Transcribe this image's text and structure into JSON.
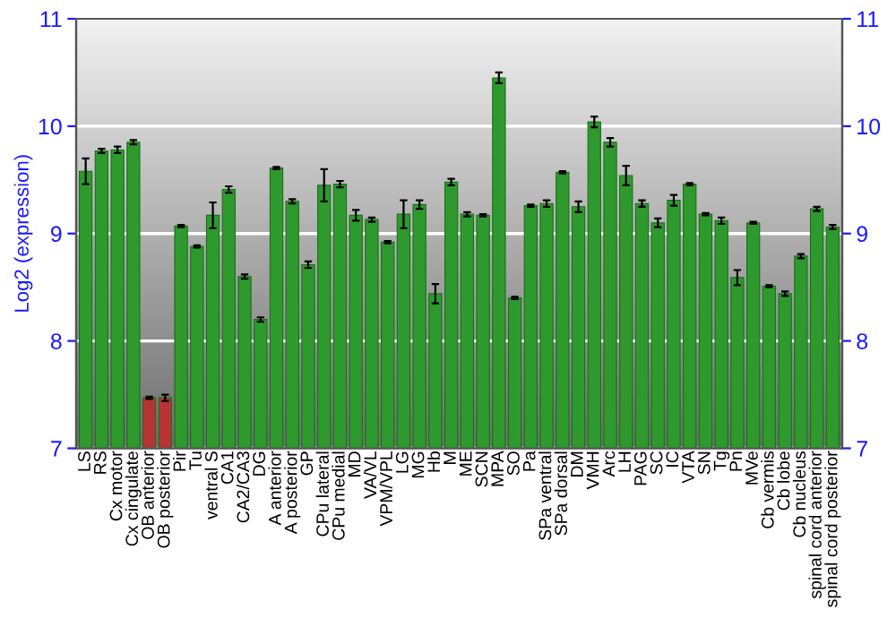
{
  "chart_data": {
    "type": "bar",
    "ylabel": "Log2 (expression)",
    "categories": [
      "LS",
      "RS",
      "Cx motor",
      "Cx cingulate",
      "OB anterior",
      "OB posterior",
      "Pir",
      "Tu",
      "ventral S",
      "CA1",
      "CA2/CA3",
      "DG",
      "A anterior",
      "A posterior",
      "GP",
      "CPu lateral",
      "CPu medial",
      "MD",
      "VA/VL",
      "VPM/VPL",
      "LG",
      "MG",
      "Hb",
      "M",
      "ME",
      "SCN",
      "MPA",
      "SO",
      "Pa",
      "SPa ventral",
      "SPa dorsal",
      "DM",
      "VMH",
      "Arc",
      "LH",
      "PAG",
      "SC",
      "IC",
      "VTA",
      "SN",
      "Tg",
      "Pn",
      "MVe",
      "Cb vermis",
      "Cb lobe",
      "Cb nucleus",
      "spinal cord anterior",
      "spinal cord posterior"
    ],
    "values": [
      9.58,
      9.77,
      9.78,
      9.85,
      7.47,
      7.47,
      9.07,
      8.88,
      9.17,
      9.41,
      8.6,
      8.2,
      9.61,
      9.3,
      8.71,
      9.45,
      9.46,
      9.17,
      9.13,
      8.92,
      9.18,
      9.27,
      8.44,
      9.48,
      9.18,
      9.17,
      10.45,
      8.4,
      9.26,
      9.28,
      9.57,
      9.25,
      10.04,
      9.85,
      9.54,
      9.28,
      9.1,
      9.31,
      9.46,
      9.18,
      9.12,
      8.59,
      9.1,
      8.51,
      8.44,
      8.79,
      9.23,
      9.06
    ],
    "errors": [
      0.12,
      0.02,
      0.03,
      0.02,
      0.01,
      0.03,
      0.01,
      0.01,
      0.12,
      0.03,
      0.02,
      0.02,
      0.01,
      0.02,
      0.03,
      0.15,
      0.03,
      0.05,
      0.02,
      0.01,
      0.13,
      0.04,
      0.09,
      0.03,
      0.02,
      0.01,
      0.05,
      0.01,
      0.01,
      0.03,
      0.01,
      0.05,
      0.05,
      0.04,
      0.09,
      0.03,
      0.04,
      0.05,
      0.01,
      0.01,
      0.03,
      0.07,
      0.01,
      0.01,
      0.02,
      0.02,
      0.02,
      0.02
    ],
    "colors": [
      "#2e9a2e",
      "#2e9a2e",
      "#2e9a2e",
      "#2e9a2e",
      "#b83434",
      "#b83434",
      "#2e9a2e",
      "#2e9a2e",
      "#2e9a2e",
      "#2e9a2e",
      "#2e9a2e",
      "#2e9a2e",
      "#2e9a2e",
      "#2e9a2e",
      "#2e9a2e",
      "#2e9a2e",
      "#2e9a2e",
      "#2e9a2e",
      "#2e9a2e",
      "#2e9a2e",
      "#2e9a2e",
      "#2e9a2e",
      "#2e9a2e",
      "#2e9a2e",
      "#2e9a2e",
      "#2e9a2e",
      "#2e9a2e",
      "#2e9a2e",
      "#2e9a2e",
      "#2e9a2e",
      "#2e9a2e",
      "#2e9a2e",
      "#2e9a2e",
      "#2e9a2e",
      "#2e9a2e",
      "#2e9a2e",
      "#2e9a2e",
      "#2e9a2e",
      "#2e9a2e",
      "#2e9a2e",
      "#2e9a2e",
      "#2e9a2e",
      "#2e9a2e",
      "#2e9a2e",
      "#2e9a2e",
      "#2e9a2e",
      "#2e9a2e",
      "#2e9a2e"
    ],
    "ylim": [
      7,
      11
    ],
    "yticks": [
      7,
      8,
      9,
      10,
      11
    ],
    "y2lim": [
      7,
      11
    ],
    "y2ticks": [
      7,
      8,
      9,
      10,
      11
    ],
    "grid": "y"
  }
}
